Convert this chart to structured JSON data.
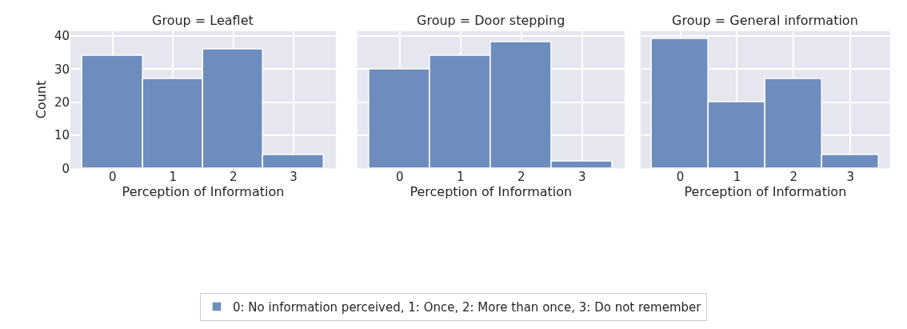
{
  "chart_data": [
    {
      "type": "histogram",
      "title": "Group = Leaflet",
      "xlabel": "Perception of Information",
      "ylabel": "Count",
      "bins": [
        -0.5,
        0.5,
        1.5,
        2.5,
        3.5
      ],
      "series": [
        {
          "name": "0: No information perceived, 1: Once, 2: More than once, 3: Do not remember",
          "color": "#6d8dbf",
          "values": [
            34,
            27,
            36,
            4
          ]
        }
      ],
      "xlim": [
        -0.7,
        3.7
      ],
      "xticks": [
        0,
        1,
        2,
        3
      ],
      "ylim": [
        0,
        41.5
      ],
      "yticks": [
        0,
        10,
        20,
        30,
        40
      ],
      "grid": true,
      "legend": "bottom"
    },
    {
      "type": "histogram",
      "title": "Group = Door stepping",
      "xlabel": "Perception of Information",
      "bins": [
        -0.5,
        0.5,
        1.5,
        2.5,
        3.5
      ],
      "series": [
        {
          "color": "#6d8dbf",
          "values": [
            30,
            34,
            38,
            2
          ]
        }
      ],
      "xlim": [
        -0.7,
        3.7
      ],
      "xticks": [
        0,
        1,
        2,
        3
      ],
      "ylim": [
        0,
        41.5
      ],
      "yticks": [
        0,
        10,
        20,
        30,
        40
      ],
      "grid": true,
      "tick_labels": "x"
    },
    {
      "type": "histogram",
      "title": "Group = General information",
      "xlabel": "Perception of Information",
      "bins": [
        -0.5,
        0.5,
        1.5,
        2.5,
        3.5
      ],
      "series": [
        {
          "color": "#6d8dbf",
          "values": [
            39,
            20,
            27,
            4
          ]
        }
      ],
      "xlim": [
        -0.7,
        3.7
      ],
      "xticks": [
        0,
        1,
        2,
        3
      ],
      "ylim": [
        0,
        41.5
      ],
      "yticks": [
        0,
        10,
        20,
        30,
        40
      ],
      "grid": true,
      "tick_labels": "x"
    }
  ]
}
